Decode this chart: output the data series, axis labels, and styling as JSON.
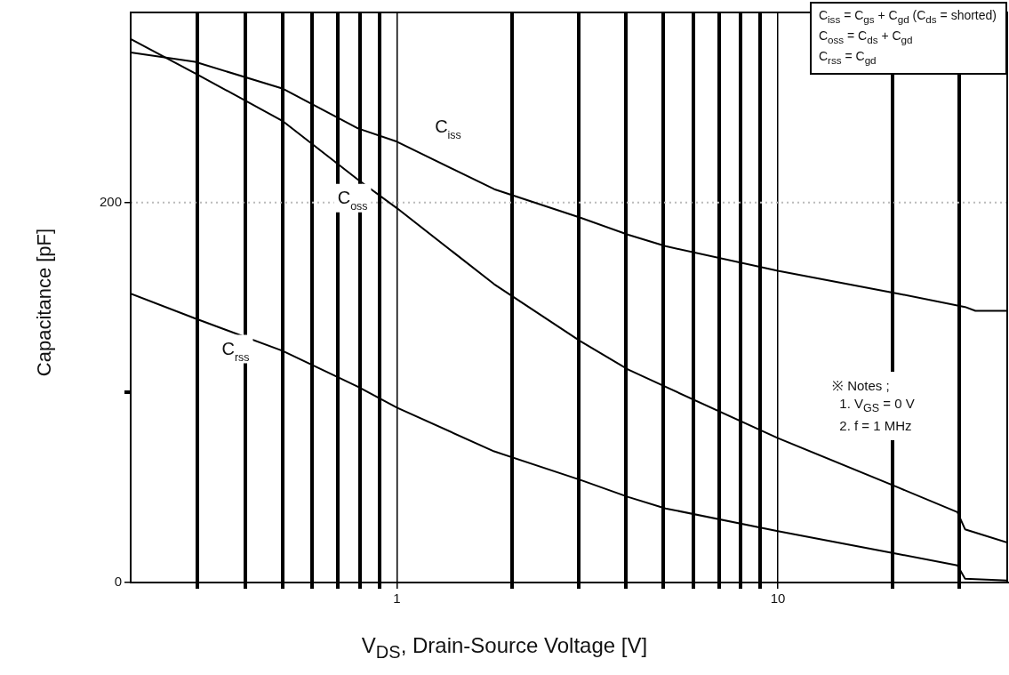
{
  "chart_data": {
    "type": "line",
    "xlabel": "V$_{DS}$, Drain-Source Voltage [V]",
    "ylabel": "Capacitance [pF]",
    "log": "x",
    "xlim": [
      0.2,
      40
    ],
    "xticks": [
      {
        "value": 0.3,
        "label": null
      },
      {
        "value": 0.4,
        "label": null
      },
      {
        "value": 0.5,
        "label": null
      },
      {
        "value": 0.6,
        "label": null
      },
      {
        "value": 0.7,
        "label": null
      },
      {
        "value": 0.8,
        "label": null
      },
      {
        "value": 0.9,
        "label": null
      },
      1,
      {
        "value": 2,
        "label": null
      },
      {
        "value": 3,
        "label": null
      },
      {
        "value": 4,
        "label": null
      },
      {
        "value": 5,
        "label": null
      },
      {
        "value": 6,
        "label": null
      },
      {
        "value": 7,
        "label": null
      },
      {
        "value": 8,
        "label": null
      },
      {
        "value": 9,
        "label": null
      },
      10,
      {
        "value": 20,
        "label": null
      },
      {
        "value": 30,
        "label": null
      }
    ],
    "ylim": [
      0,
      300
    ],
    "yticks": [
      0,
      {
        "value": 100,
        "label": null
      },
      200
    ],
    "grid": "x",
    "legend": false,
    "marker": "none",
    "line_style": "solid",
    "ref_lines": [
      {
        "axis": "y",
        "value": 200,
        "label": null,
        "color": "#bbbbbb",
        "line_style": "dotted"
      }
    ],
    "series": [
      {
        "name": "C$_{iss}$",
        "color": "#000000",
        "x": [
          0.2,
          0.295,
          0.5,
          0.79,
          1.0,
          1.8,
          3.03,
          4.05,
          5.07,
          10,
          20.7,
          31,
          33,
          40
        ],
        "values": [
          279,
          274,
          260,
          239,
          232,
          207,
          192,
          183,
          177,
          164,
          152,
          145,
          143,
          143
        ]
      },
      {
        "name": "C$_{oss}$",
        "color": "#000000",
        "x": [
          0.2,
          0.295,
          0.5,
          0.79,
          1.0,
          1.8,
          3.03,
          4.05,
          5.07,
          10,
          20.7,
          29.6,
          31,
          40
        ],
        "values": [
          286,
          268,
          243,
          212,
          197,
          157,
          127,
          112,
          103,
          76,
          50,
          37,
          28,
          21
        ]
      },
      {
        "name": "C$_{rss}$",
        "color": "#000000",
        "x": [
          0.2,
          0.295,
          0.5,
          0.79,
          1.0,
          1.8,
          3.03,
          4.05,
          5.07,
          10,
          20.7,
          29.6,
          31,
          40
        ],
        "values": [
          152,
          139,
          122,
          103,
          92,
          69,
          54,
          45,
          39,
          27,
          15,
          9,
          2,
          1
        ]
      }
    ],
    "annotations": [
      "C$_{iss}$ = C$_{gs}$ + C$_{gd}$ (C$_{ds}$ = shorted)",
      "C$_{oss}$ = C$_{ds}$ + C$_{gd}$",
      "C$_{rss}$ = C$_{gd}$",
      "※ Notes ;",
      "1. V$_{GS}$ = 0 V",
      "2. f = 1 MHz"
    ]
  }
}
